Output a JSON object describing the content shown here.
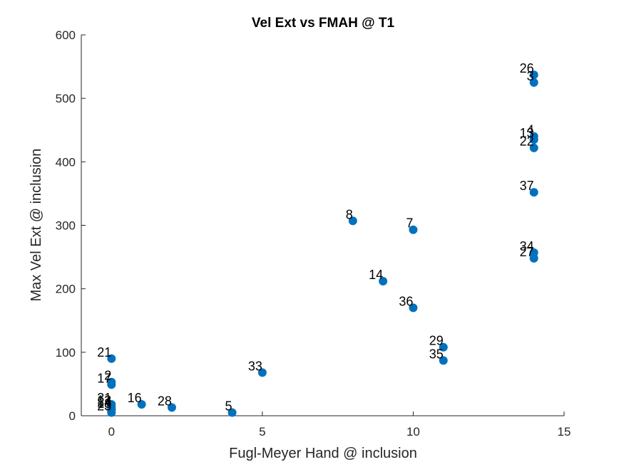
{
  "chart_data": {
    "type": "scatter",
    "title": "Vel Ext vs FMAH @ T1",
    "xlabel": "Fugl-Meyer Hand @ inclusion",
    "ylabel": "Max Vel Ext @ inclusion",
    "xlim": [
      -1,
      15
    ],
    "ylim": [
      0,
      600
    ],
    "xticks": [
      0,
      5,
      10,
      15
    ],
    "yticks": [
      0,
      100,
      200,
      300,
      400,
      500,
      600
    ],
    "grid": false,
    "legend": "none",
    "marker_color": "#0072BD",
    "points": [
      {
        "label": "26",
        "x": 14,
        "y": 537
      },
      {
        "label": "3",
        "x": 14,
        "y": 525
      },
      {
        "label": "4",
        "x": 14,
        "y": 440
      },
      {
        "label": "13",
        "x": 14,
        "y": 435
      },
      {
        "label": "22",
        "x": 14,
        "y": 422
      },
      {
        "label": "37",
        "x": 14,
        "y": 352
      },
      {
        "label": "34",
        "x": 14,
        "y": 257
      },
      {
        "label": "27",
        "x": 14,
        "y": 248
      },
      {
        "label": "8",
        "x": 8,
        "y": 307
      },
      {
        "label": "7",
        "x": 10,
        "y": 293
      },
      {
        "label": "14",
        "x": 9,
        "y": 212
      },
      {
        "label": "36",
        "x": 10,
        "y": 170
      },
      {
        "label": "29",
        "x": 11,
        "y": 108
      },
      {
        "label": "35",
        "x": 11,
        "y": 87
      },
      {
        "label": "33",
        "x": 5,
        "y": 68
      },
      {
        "label": "21",
        "x": 0,
        "y": 90
      },
      {
        "label": "2",
        "x": 0,
        "y": 53
      },
      {
        "label": "17",
        "x": 0,
        "y": 49
      },
      {
        "label": "31",
        "x": 0,
        "y": 18
      },
      {
        "label": "12",
        "x": 0,
        "y": 14
      },
      {
        "label": "24",
        "x": 0,
        "y": 11
      },
      {
        "label": "18",
        "x": 0,
        "y": 9
      },
      {
        "label": "23",
        "x": 0,
        "y": 5
      },
      {
        "label": "16",
        "x": 1,
        "y": 18
      },
      {
        "label": "28",
        "x": 2,
        "y": 13
      },
      {
        "label": "5",
        "x": 4,
        "y": 5
      }
    ]
  }
}
